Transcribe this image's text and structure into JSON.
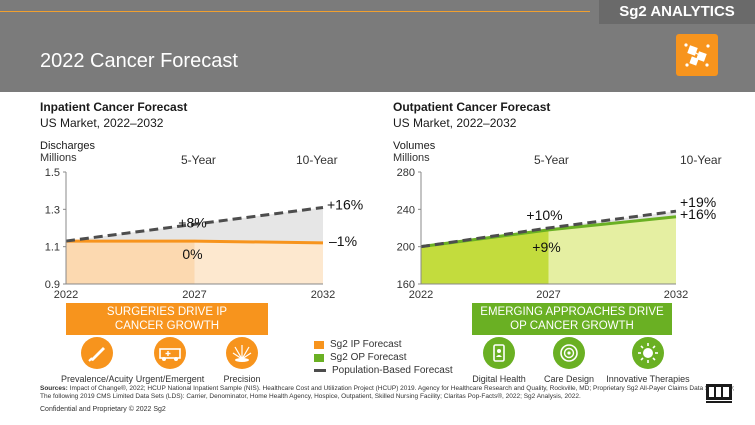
{
  "brand": {
    "name": "Sg2 ANALYTICS"
  },
  "page": {
    "title": "2022 Cancer Forecast"
  },
  "colors": {
    "orange": "#f7941d",
    "green": "#6ab023",
    "gray_header": "#7b7b7b",
    "dash": "#4d4d4d"
  },
  "inpatient": {
    "title": "Inpatient Cancer Forecast",
    "subtitle": "US Market, 2022–2032",
    "metric": "Discharges",
    "unit": "Millions",
    "five_year": "5-Year",
    "ten_year": "10-Year"
  },
  "outpatient": {
    "title": "Outpatient Cancer Forecast",
    "subtitle": "US Market, 2022–2032",
    "metric": "Volumes",
    "unit": "Millions",
    "five_year": "5-Year",
    "ten_year": "10-Year"
  },
  "chart_data": [
    {
      "type": "area",
      "title": "Inpatient Cancer Forecast",
      "ylabel": "Discharges Millions",
      "x": [
        2022,
        2027,
        2032
      ],
      "ylim": [
        0.9,
        1.5
      ],
      "yticks": [
        "0.9",
        "1.1",
        "1.3",
        "1.5"
      ],
      "xticks": [
        "2022",
        "2027",
        "2032"
      ],
      "series": [
        {
          "name": "Sg2 IP Forecast",
          "values": [
            1.13,
            1.13,
            1.12
          ]
        },
        {
          "name": "Population-Based Forecast",
          "values": [
            1.13,
            1.22,
            1.31
          ]
        }
      ],
      "annotations": {
        "pop_5yr": "+8%",
        "pop_10yr": "+16%",
        "fc_5yr": "0%",
        "fc_10yr": "–1%"
      },
      "grid": false
    },
    {
      "type": "area",
      "title": "Outpatient Cancer Forecast",
      "ylabel": "Volumes Millions",
      "x": [
        2022,
        2027,
        2032
      ],
      "ylim": [
        160,
        280
      ],
      "yticks": [
        "160",
        "200",
        "240",
        "280"
      ],
      "xticks": [
        "2022",
        "2027",
        "2032"
      ],
      "series": [
        {
          "name": "Sg2 OP Forecast",
          "values": [
            200,
            218,
            232
          ]
        },
        {
          "name": "Population-Based Forecast",
          "values": [
            200,
            220,
            238
          ]
        }
      ],
      "annotations": {
        "pop_5yr": "+10%",
        "pop_10yr": "+19%",
        "fc_5yr": "+9%",
        "fc_10yr": "+16%"
      },
      "grid": false
    }
  ],
  "banners": {
    "ip": [
      "SURGERIES DRIVE IP",
      "CANCER GROWTH"
    ],
    "op": [
      "EMERGING APPROACHES DRIVE",
      "OP CANCER GROWTH"
    ]
  },
  "ip_icons": [
    {
      "label": "Prevalence/Acuity",
      "icon": "scalpel-icon"
    },
    {
      "label": "Urgent/Emergent",
      "icon": "ambulance-icon"
    },
    {
      "label": "Precision",
      "icon": "radiation-beam-icon"
    }
  ],
  "op_icons": [
    {
      "label": "Digital Health",
      "icon": "digital-health-icon"
    },
    {
      "label": "Care Design",
      "icon": "care-design-icon"
    },
    {
      "label": "Innovative Therapies",
      "icon": "innovative-therapies-icon"
    }
  ],
  "legend": [
    {
      "label": "Sg2 IP Forecast",
      "color": "#f7941d",
      "kind": "swatch"
    },
    {
      "label": "Sg2 OP Forecast",
      "color": "#6ab023",
      "kind": "swatch"
    },
    {
      "label": "Population-Based Forecast",
      "color": "#4d4d4d",
      "kind": "dash"
    }
  ],
  "footer": {
    "sources_label": "Sources:",
    "sources_text": "Impact of Change®, 2022; HCUP National Inpatient Sample (NIS). Healthcare Cost and Utilization Project (HCUP) 2019. Agency for Healthcare Research and Quality, Rockville, MD; Proprietary Sg2 All-Payer Claims Data Set, 2019; The following 2019 CMS Limited Data Sets (LDS): Carrier, Denominator, Home Health Agency, Hospice, Outpatient, Skilled Nursing Facility; Claritas Pop-Facts®, 2022; Sg2 Analysis, 2022.",
    "confidential": "Confidential and Proprietary © 2022 Sg2"
  }
}
